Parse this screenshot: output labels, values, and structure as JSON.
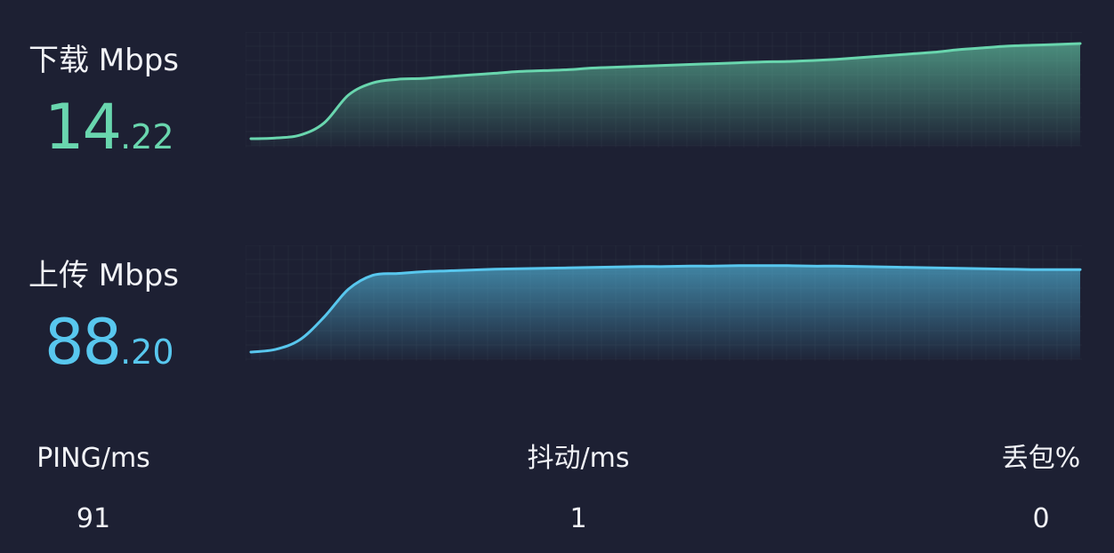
{
  "download": {
    "label": "下载 Mbps",
    "value_int": "14",
    "value_dec": ".22",
    "color": "#69d6ae",
    "series": [
      0,
      0.8,
      4,
      18,
      50,
      64,
      68,
      69,
      71,
      73,
      75,
      77,
      78,
      79,
      81,
      82,
      83,
      84,
      85,
      86,
      87,
      88,
      88.5,
      89.5,
      91,
      93,
      95,
      97,
      99,
      102,
      104,
      106,
      107,
      108,
      109
    ]
  },
  "upload": {
    "label": "上传 Mbps",
    "value_int": "88",
    "value_dec": ".20",
    "color": "#58c7ee",
    "series": [
      0,
      3,
      14,
      40,
      72,
      88,
      90,
      92,
      93,
      94,
      95,
      95.5,
      96,
      96.5,
      97,
      97.5,
      98,
      98,
      98.5,
      98.5,
      99,
      99,
      99,
      98.5,
      98.5,
      98,
      97.5,
      97,
      96.5,
      96,
      95.5,
      95,
      94.5,
      94.5,
      94.5
    ]
  },
  "stats": {
    "ping_label": "PING/ms",
    "ping_value": "91",
    "jitter_label": "抖动/ms",
    "jitter_value": "1",
    "loss_label": "丢包%",
    "loss_value": "0"
  }
}
